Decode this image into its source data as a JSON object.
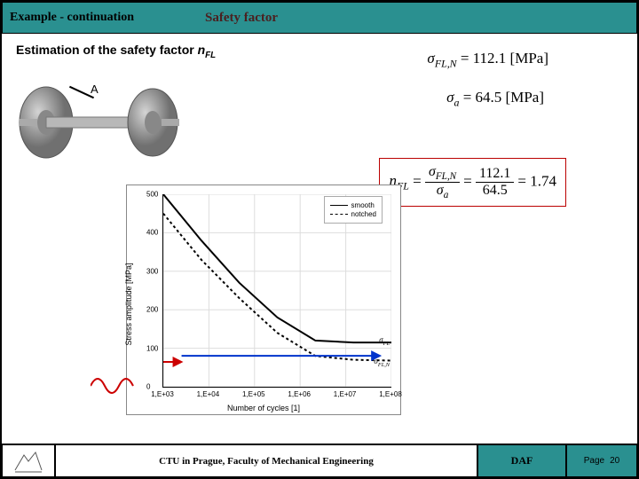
{
  "header": {
    "left": "Example - continuation",
    "title": "Safety factor"
  },
  "main": {
    "estimation_prefix": "Estimation of the safety factor ",
    "estimation_var": "n",
    "estimation_sub": "FL",
    "label_a": "A"
  },
  "formulas": {
    "f1_lhs": "σ",
    "f1_sub": "FL,N",
    "f1_eq": " = 112.1  [MPa]",
    "f2_lhs": "σ",
    "f2_sub": "a",
    "f2_eq": " = 64.5  [MPa]",
    "box_lhs": "n",
    "box_lhs_sub": "FL",
    "box_eq": " = ",
    "frac1_num": "σ",
    "frac1_num_sub": "FL,N",
    "frac1_den": "σ",
    "frac1_den_sub": "a",
    "frac2_num": "112.1",
    "frac2_den": "64.5",
    "box_result": " = 1.74"
  },
  "chart": {
    "xlabel": "Number of cycles [1]",
    "ylabel": "Stress amplitude [MPa]",
    "yticks": [
      0,
      100,
      200,
      300,
      400,
      500
    ],
    "xticks": [
      "1,E+03",
      "1,E+04",
      "1,E+05",
      "1,E+06",
      "1,E+07",
      "1,E+08"
    ],
    "legend": {
      "smooth": "smooth",
      "notched": "notched"
    },
    "smooth": [
      500,
      380,
      270,
      180,
      120,
      115,
      115
    ],
    "notched": [
      450,
      330,
      230,
      140,
      80,
      70,
      68
    ],
    "annot_top": "σ",
    "annot_top_sub": "FL",
    "annot_bot": "σ",
    "annot_bot_sub": "FL,N",
    "arrow_red_color": "#cc0000",
    "arrow_blue_color": "#0033cc",
    "grid_color": "#dddddd",
    "solid_width": 2,
    "dashed": "3,3"
  },
  "axle": {
    "wheel_color": "#9a9a9a",
    "shaft_color": "#b8b8b8",
    "highlight": "#d4d4d4"
  },
  "sine": {
    "color": "#cc0000",
    "amp": 10,
    "cycles": 1.5,
    "width": 50
  },
  "footer": {
    "mid": "CTU in Prague, Faculty of Mechanical Engineering",
    "daf": "DAF",
    "page_label": "Page",
    "page_num": "20"
  }
}
